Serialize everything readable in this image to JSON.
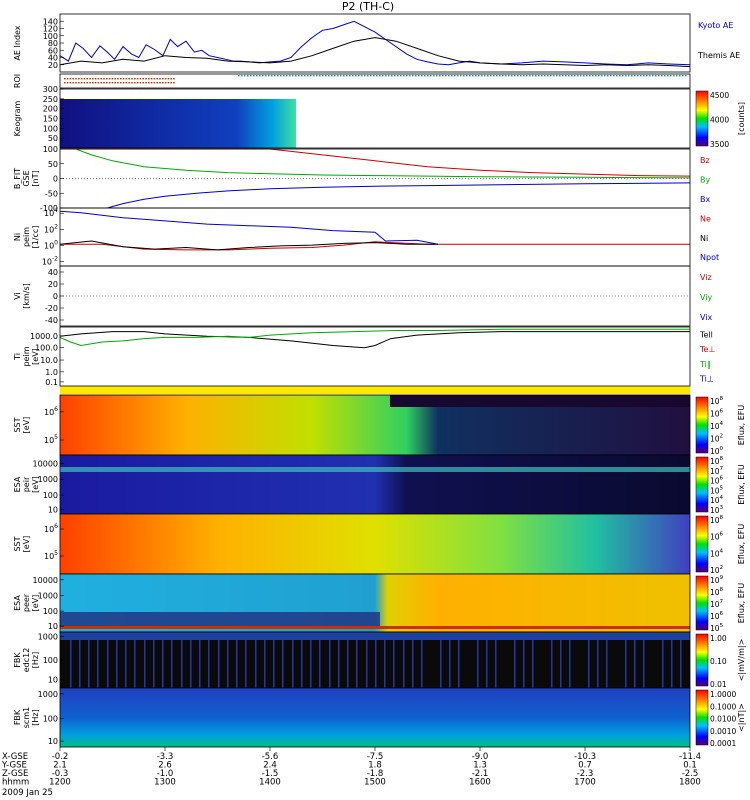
{
  "title": "P2 (TH-C)",
  "date_label": "2009 Jan 25",
  "chart_data": [
    {
      "id": "ae",
      "type": "line",
      "ylabel": "AE Index",
      "ylim": [
        0,
        160
      ],
      "yticks": [
        20,
        40,
        60,
        80,
        100,
        120,
        140
      ],
      "xlim": [
        1200,
        1800
      ],
      "legend": [
        "Kyoto AE",
        "Themis AE"
      ],
      "legend_colors": [
        "#0000cc",
        "#000000"
      ],
      "series": [
        {
          "name": "Kyoto AE",
          "color": "#0000cc",
          "x": [
            1200,
            1208,
            1215,
            1222,
            1230,
            1238,
            1245,
            1252,
            1260,
            1268,
            1275,
            1282,
            1290,
            1298,
            1305,
            1312,
            1320,
            1328,
            1335,
            1342,
            1350,
            1358,
            1365,
            1372,
            1380,
            1390,
            1400,
            1410,
            1420,
            1430,
            1440,
            1450,
            1460,
            1470,
            1480,
            1490,
            1500,
            1510,
            1520,
            1530,
            1540,
            1550,
            1560,
            1570,
            1580,
            1590,
            1600,
            1620,
            1640,
            1660,
            1680,
            1700,
            1720,
            1740,
            1760,
            1780,
            1800
          ],
          "y": [
            45,
            30,
            80,
            65,
            40,
            72,
            55,
            35,
            70,
            50,
            40,
            75,
            62,
            45,
            90,
            70,
            85,
            55,
            60,
            45,
            40,
            35,
            30,
            30,
            28,
            25,
            28,
            30,
            40,
            70,
            95,
            115,
            120,
            130,
            140,
            125,
            110,
            90,
            70,
            50,
            35,
            28,
            22,
            20,
            25,
            30,
            25,
            22,
            25,
            30,
            28,
            25,
            22,
            20,
            25,
            22,
            20
          ]
        },
        {
          "name": "Themis AE",
          "color": "#000000",
          "x": [
            1200,
            1220,
            1240,
            1260,
            1280,
            1300,
            1320,
            1340,
            1360,
            1380,
            1400,
            1420,
            1440,
            1460,
            1480,
            1500,
            1520,
            1540,
            1560,
            1580,
            1600,
            1620,
            1640,
            1660,
            1680,
            1700,
            1720,
            1740,
            1760,
            1780,
            1800
          ],
          "y": [
            20,
            30,
            25,
            35,
            30,
            45,
            40,
            38,
            30,
            28,
            25,
            30,
            45,
            65,
            85,
            95,
            85,
            65,
            45,
            30,
            25,
            22,
            20,
            22,
            20,
            18,
            20,
            18,
            20,
            18,
            15
          ]
        }
      ]
    },
    {
      "id": "roi",
      "type": "bar",
      "ylabel": "ROI"
    },
    {
      "id": "keogram",
      "type": "heatmap",
      "ylabel": "Keogram",
      "ylim": [
        0,
        300
      ],
      "yticks": [
        50,
        100,
        150,
        200,
        250,
        300
      ],
      "colorbar_ticks": [
        "4500",
        "4000",
        "3500"
      ],
      "colorbar_label": "[counts]"
    },
    {
      "id": "bfit",
      "type": "line",
      "ylabel": "B_FIT",
      "ylabel2": "GSE",
      "ylabel3": "[nT]",
      "ylim": [
        -100,
        100
      ],
      "yticks": [
        -100,
        -50,
        0,
        50,
        100
      ],
      "legend": [
        "Bz",
        "By",
        "Bx"
      ],
      "legend_colors": [
        "#cc0000",
        "#00aa00",
        "#0000cc"
      ],
      "series": [
        {
          "name": "Bz",
          "color": "#cc0000",
          "x": [
            1200,
            1250,
            1300,
            1350,
            1400,
            1450,
            1500,
            1550,
            1600,
            1650,
            1700,
            1750,
            1800
          ],
          "y": [
            110,
            115,
            118,
            115,
            100,
            80,
            60,
            40,
            28,
            20,
            15,
            10,
            8
          ]
        },
        {
          "name": "By",
          "color": "#00aa00",
          "x": [
            1215,
            1230,
            1250,
            1280,
            1320,
            1360,
            1400,
            1450,
            1500,
            1550,
            1600,
            1700,
            1800
          ],
          "y": [
            100,
            80,
            60,
            40,
            28,
            20,
            16,
            12,
            10,
            8,
            6,
            4,
            2
          ]
        },
        {
          "name": "Bx",
          "color": "#0000cc",
          "x": [
            1245,
            1260,
            1280,
            1300,
            1330,
            1360,
            1400,
            1450,
            1500,
            1550,
            1600,
            1700,
            1800
          ],
          "y": [
            -100,
            -85,
            -70,
            -60,
            -50,
            -42,
            -35,
            -30,
            -26,
            -24,
            -22,
            -18,
            -15
          ]
        }
      ]
    },
    {
      "id": "ni",
      "type": "line",
      "ylabel": "Ni",
      "ylabel2": "peim",
      "ylabel3": "[1/cc]",
      "yticks": [
        "10^4",
        "10^2",
        "10^0",
        "10^-2"
      ],
      "legend": [
        "Ne",
        "Ni",
        "Npot"
      ],
      "legend_colors": [
        "#cc0000",
        "#000000",
        "#0000cc"
      ],
      "series": [
        {
          "name": "Ne",
          "color": "#cc0000",
          "x": [
            1200,
            1240,
            1280,
            1320,
            1360,
            1400,
            1440,
            1470,
            1500,
            1550,
            1600,
            1700,
            1800
          ],
          "y": [
            0.1,
            0.1,
            -0.5,
            -0.6,
            -0.6,
            -0.4,
            -0.3,
            0,
            0.4,
            0.1,
            0.1,
            0.1,
            0.1
          ]
        },
        {
          "name": "Ni",
          "color": "#000000",
          "x": [
            1200,
            1230,
            1260,
            1290,
            1320,
            1350,
            1380,
            1410,
            1440,
            1470,
            1500,
            1530,
            1560
          ],
          "y": [
            0.1,
            0.5,
            -0.2,
            -0.5,
            -0.3,
            -0.6,
            -0.3,
            -0.1,
            0,
            0.2,
            0.3,
            0.1,
            0.1
          ]
        },
        {
          "name": "Npot",
          "color": "#0000cc",
          "x": [
            1200,
            1220,
            1260,
            1300,
            1340,
            1380,
            1420,
            1460,
            1500,
            1510,
            1540,
            1560
          ],
          "y": [
            4.2,
            4.0,
            3.4,
            3.0,
            2.6,
            2.4,
            2.2,
            1.8,
            1.6,
            0.5,
            0.6,
            0.1
          ]
        }
      ]
    },
    {
      "id": "vi",
      "type": "line",
      "ylabel": "Vi",
      "ylabel2": "[km/s]",
      "ylim": [
        -50,
        50
      ],
      "yticks": [
        -40,
        -20,
        0,
        20,
        40
      ],
      "legend": [
        "Viz",
        "Viy",
        "Vix"
      ],
      "legend_colors": [
        "#cc0000",
        "#00aa00",
        "#0000cc"
      ]
    },
    {
      "id": "ti",
      "type": "line",
      "ylabel": "Ti",
      "ylabel2": "peim",
      "ylabel3": "[eV]",
      "yticks": [
        "1000.0",
        "100.0",
        "10.0",
        "1.0",
        "0.1"
      ],
      "legend": [
        "Tell",
        "Te⊥",
        "Ti‖",
        "Ti⊥"
      ],
      "legend_colors": [
        "#000000",
        "#cc0000",
        "#00aa00",
        "#0000cc"
      ],
      "series": [
        {
          "name": "Tell",
          "color": "#000000",
          "x": [
            1200,
            1220,
            1250,
            1280,
            1300,
            1340,
            1380,
            1420,
            1460,
            1490,
            1500,
            1515,
            1540,
            1580,
            1620,
            1680,
            1740,
            1800
          ],
          "y": [
            3.0,
            3.2,
            3.4,
            3.4,
            3.2,
            3.0,
            2.9,
            2.6,
            2.2,
            2.0,
            2.2,
            2.8,
            3.1,
            3.3,
            3.4,
            3.4,
            3.4,
            3.4
          ]
        },
        {
          "name": "Ti‖",
          "color": "#00aa00",
          "x": [
            1200,
            1210,
            1220,
            1240,
            1260,
            1280,
            1300,
            1330,
            1360,
            1380,
            1400,
            1440,
            1480,
            1520,
            1560,
            1620,
            1700,
            1800
          ],
          "y": [
            2.9,
            2.5,
            2.2,
            2.5,
            2.6,
            2.8,
            2.9,
            2.9,
            3.0,
            2.9,
            3.1,
            3.3,
            3.4,
            3.5,
            3.5,
            3.6,
            3.6,
            3.6
          ]
        }
      ]
    },
    {
      "id": "sst1",
      "type": "heatmap",
      "ylabel": "SST",
      "ylabel2": "[eV]",
      "yticks": [
        "10^6",
        "10^5"
      ],
      "colorbar_ticks": [
        "10^8",
        "10^6",
        "10^4",
        "10^2",
        "10^0"
      ],
      "colorbar_label": "Eflux, EFU"
    },
    {
      "id": "esa1",
      "type": "heatmap",
      "ylabel": "ESA",
      "ylabel2": "peir",
      "ylabel3": "[eV]",
      "yticks": [
        "10000",
        "1000",
        "100",
        "10"
      ],
      "colorbar_ticks": [
        "10^8",
        "10^7",
        "10^6",
        "10^5",
        "10^4",
        "10^3"
      ],
      "colorbar_label": "Eflux, EFU"
    },
    {
      "id": "sst2",
      "type": "heatmap",
      "ylabel": "SST",
      "ylabel2": "[eV]",
      "yticks": [
        "10^6",
        "10^5"
      ],
      "colorbar_ticks": [
        "10^8",
        "10^6",
        "10^4",
        "10^2"
      ],
      "colorbar_label": "Eflux, EFU"
    },
    {
      "id": "esa2",
      "type": "heatmap",
      "ylabel": "ESA",
      "ylabel2": "peer",
      "ylabel3": "[eV]",
      "yticks": [
        "10000",
        "1000",
        "100",
        "10"
      ],
      "colorbar_ticks": [
        "10^9",
        "10^8",
        "10^7",
        "10^6",
        "10^5"
      ],
      "colorbar_label": "Eflux, EFU"
    },
    {
      "id": "fbk1",
      "type": "heatmap",
      "ylabel": "FBK",
      "ylabel2": "edc12",
      "ylabel3": "[Hz]",
      "yticks": [
        "1000",
        "100",
        "10"
      ],
      "colorbar_ticks": [
        "1.00",
        "0.10",
        "0.01"
      ],
      "colorbar_label": "<|mV/m|>"
    },
    {
      "id": "fbk2",
      "type": "heatmap",
      "ylabel": "FBK",
      "ylabel2": "scm1",
      "ylabel3": "[Hz]",
      "yticks": [
        "1000",
        "100",
        "10"
      ],
      "colorbar_ticks": [
        "1.0000",
        "0.1000",
        "0.0100",
        "0.0010",
        "0.0001"
      ],
      "colorbar_label": "<|nT|>"
    }
  ],
  "xaxis": {
    "row_labels": [
      "X-GSE",
      "Y-GSE",
      "Z-GSE",
      "hhmm",
      ""
    ],
    "columns": [
      {
        "x": 1200,
        "vals": [
          "-0.2",
          "2.1",
          "-0.3",
          "1200"
        ]
      },
      {
        "x": 1300,
        "vals": [
          "-3.3",
          "2.6",
          "-1.0",
          "1300"
        ]
      },
      {
        "x": 1400,
        "vals": [
          "-5.6",
          "2.4",
          "-1.5",
          "1400"
        ]
      },
      {
        "x": 1500,
        "vals": [
          "-7.5",
          "1.8",
          "-1.8",
          "1500"
        ]
      },
      {
        "x": 1600,
        "vals": [
          "-9.0",
          "1.3",
          "-2.1",
          "1600"
        ]
      },
      {
        "x": 1700,
        "vals": [
          "-10.3",
          "0.7",
          "-2.3",
          "1700"
        ]
      },
      {
        "x": 1800,
        "vals": [
          "-11.4",
          "0.1",
          "-2.5",
          "1800"
        ]
      }
    ]
  }
}
